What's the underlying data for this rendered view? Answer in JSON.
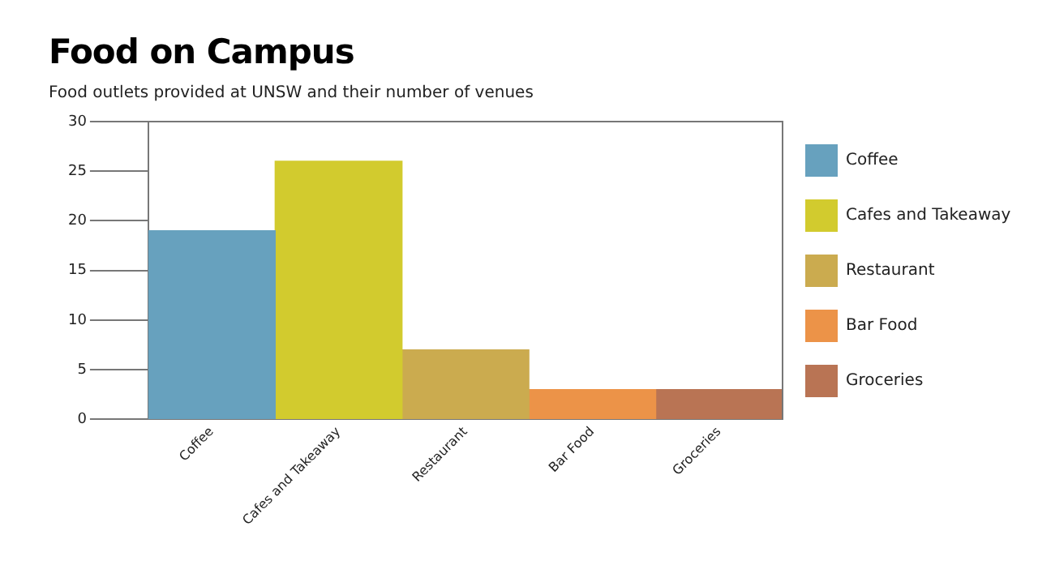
{
  "chart_data": {
    "type": "bar",
    "title": "Food on Campus",
    "subtitle": "Food outlets provided at UNSW and their number of venues",
    "categories": [
      "Coffee",
      "Cafes and Takeaway",
      "Restaurant",
      "Bar Food",
      "Groceries"
    ],
    "series": [
      {
        "name": "Coffee",
        "color": "#67a1be",
        "values": [
          19,
          null,
          null,
          null,
          null
        ]
      },
      {
        "name": "Cafes and Takeaway",
        "color": "#d2cb2e",
        "values": [
          null,
          26,
          null,
          null,
          null
        ]
      },
      {
        "name": "Restaurant",
        "color": "#cbab4f",
        "values": [
          null,
          null,
          7,
          null,
          null
        ]
      },
      {
        "name": "Bar Food",
        "color": "#ec9348",
        "values": [
          null,
          null,
          null,
          3,
          null
        ]
      },
      {
        "name": "Groceries",
        "color": "#b97454",
        "values": [
          null,
          null,
          null,
          null,
          3
        ]
      }
    ],
    "ylim": [
      0,
      30
    ],
    "yticks": [
      0,
      5,
      10,
      15,
      20,
      25,
      30
    ],
    "grid": false,
    "legend": "right"
  }
}
